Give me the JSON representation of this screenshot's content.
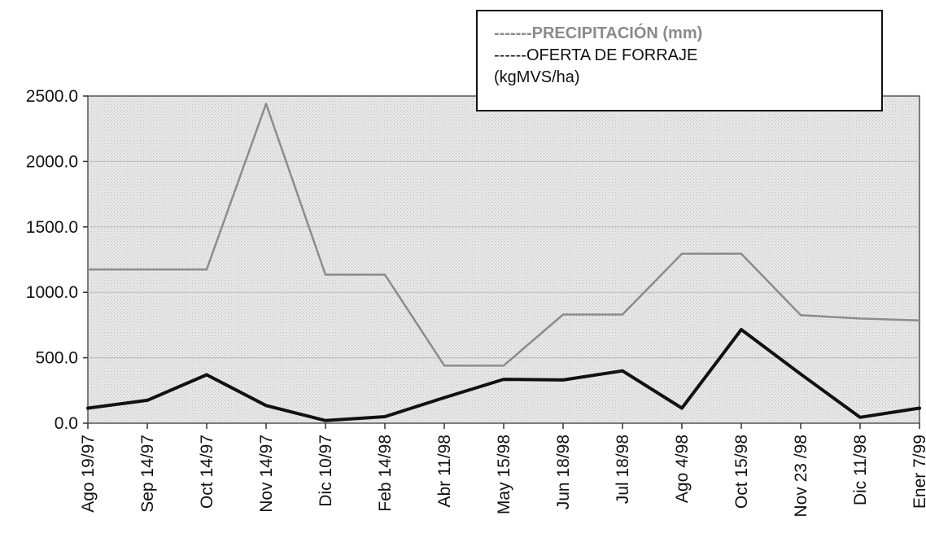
{
  "chart_data": {
    "type": "line",
    "categories": [
      "Ago 19/97",
      "Sep 14/97",
      "Oct 14/97",
      "Nov 14/97",
      "Dic 10/97",
      "Feb 14/98",
      "Abr 11/98",
      "May 15/98",
      "Jun 18/98",
      "Jul 18/98",
      "Ago 4/98",
      "Oct 15/98",
      "Nov 23 /98",
      "Dic 11/98",
      "Ener 7/99"
    ],
    "series": [
      {
        "name": "-------PRECIPITACIÓN (mm)",
        "color": "#8c8c8c",
        "values": [
          1175,
          1175,
          1175,
          2440,
          1135,
          1135,
          440,
          440,
          830,
          830,
          1295,
          1295,
          825,
          800,
          785
        ]
      },
      {
        "name": "------OFERTA DE FORRAJE (kgMVS/ha)",
        "color": "#111111",
        "values": [
          115,
          175,
          370,
          135,
          20,
          50,
          195,
          335,
          330,
          400,
          115,
          715,
          375,
          45,
          115
        ]
      }
    ],
    "yticks": [
      "0.0",
      "500.0",
      "1000.0",
      "1500.0",
      "2000.0",
      "2500.0"
    ],
    "ylim": [
      0,
      2500
    ],
    "legend_position": "top-right",
    "legend_lines": [
      "-------PRECIPITACIÓN (mm)",
      "------OFERTA DE FORRAJE",
      "(kgMVS/ha)"
    ],
    "plot_background": "#e4e4e4"
  }
}
